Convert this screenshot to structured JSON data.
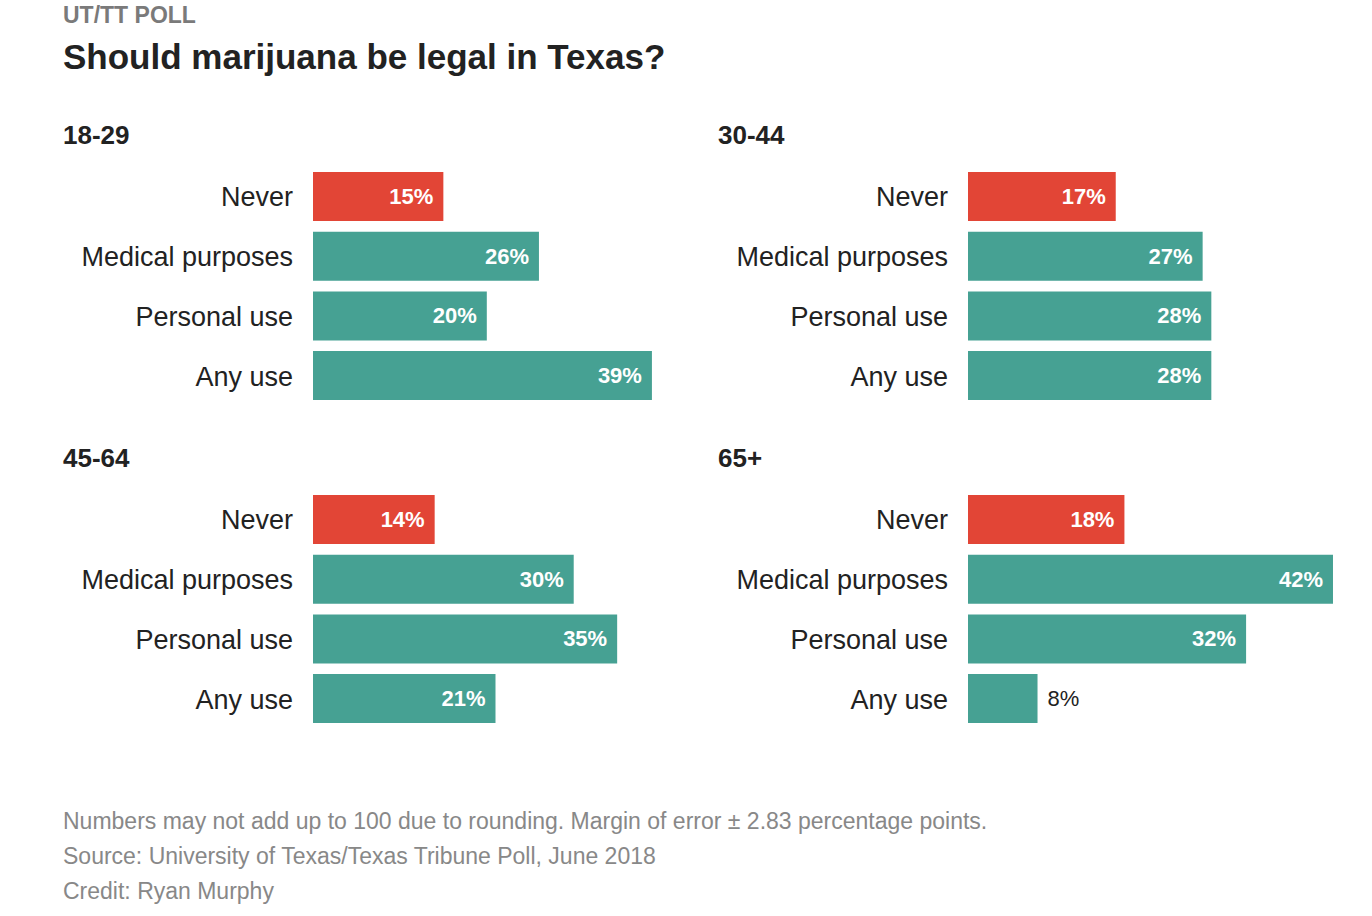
{
  "header": {
    "kicker": "UT/TT POLL",
    "title": "Should marijuana be legal in Texas?"
  },
  "chart_data": [
    {
      "type": "bar",
      "orientation": "horizontal",
      "title": "18-29",
      "categories": [
        "Never",
        "Medical purposes",
        "Personal use",
        "Any use"
      ],
      "values": [
        15,
        26,
        20,
        39
      ],
      "value_labels": [
        "15%",
        "26%",
        "20%",
        "39%"
      ],
      "colors": [
        "#e24536",
        "#46a193",
        "#46a193",
        "#46a193"
      ],
      "xlim": [
        0,
        42
      ],
      "data_labels": true,
      "tick_labels": "y",
      "grid": false
    },
    {
      "type": "bar",
      "orientation": "horizontal",
      "title": "30-44",
      "categories": [
        "Never",
        "Medical purposes",
        "Personal use",
        "Any use"
      ],
      "values": [
        17,
        27,
        28,
        28
      ],
      "value_labels": [
        "17%",
        "27%",
        "28%",
        "28%"
      ],
      "colors": [
        "#e24536",
        "#46a193",
        "#46a193",
        "#46a193"
      ],
      "xlim": [
        0,
        42
      ],
      "data_labels": true,
      "tick_labels": "y",
      "grid": false
    },
    {
      "type": "bar",
      "orientation": "horizontal",
      "title": "45-64",
      "categories": [
        "Never",
        "Medical purposes",
        "Personal use",
        "Any use"
      ],
      "values": [
        14,
        30,
        35,
        21
      ],
      "value_labels": [
        "14%",
        "30%",
        "35%",
        "21%"
      ],
      "colors": [
        "#e24536",
        "#46a193",
        "#46a193",
        "#46a193"
      ],
      "xlim": [
        0,
        42
      ],
      "data_labels": true,
      "tick_labels": "y",
      "grid": false
    },
    {
      "type": "bar",
      "orientation": "horizontal",
      "title": "65+",
      "categories": [
        "Never",
        "Medical purposes",
        "Personal use",
        "Any use"
      ],
      "values": [
        18,
        42,
        32,
        8
      ],
      "value_labels": [
        "18%",
        "42%",
        "32%",
        "8%"
      ],
      "colors": [
        "#e24536",
        "#46a193",
        "#46a193",
        "#46a193"
      ],
      "xlim": [
        0,
        42
      ],
      "data_labels": true,
      "tick_labels": "y",
      "grid": false
    }
  ],
  "notes": [
    "Numbers may not add up to 100 due to rounding. Margin of error ± 2.83 percentage points.",
    "Source: University of Texas/Texas Tribune Poll, June 2018",
    "Credit: Ryan Murphy"
  ]
}
